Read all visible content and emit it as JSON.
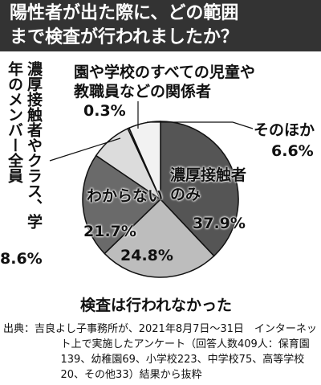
{
  "chart_data": {
    "type": "pie",
    "title": [
      "陽性者が出た際に、どの範囲",
      "まで検査が行われましたか？"
    ],
    "categories": [
      "濃厚接触者のみ",
      "検査は行われなかった",
      "わからない",
      "濃厚接触者やクラス、学年のメンバー全員",
      "園や学校のすべての児童や教職員などの関係者",
      "そのほか"
    ],
    "values": [
      37.9,
      24.8,
      21.7,
      8.6,
      0.3,
      6.6
    ],
    "value_labels": [
      "37.9%",
      "24.8%",
      "21.7%",
      "8.6%",
      "0.3%",
      "6.6%"
    ],
    "colors": [
      "#555555",
      "#bdbdbd",
      "#6a6a6a",
      "#dcdcdc",
      "#ffffff",
      "#f2f2f2"
    ],
    "source": "出典：吉良よし子事務所が、2021年8月7日〜31日　インターネット上で実施したアンケート（回答人数409人：保育園139、幼稚園69、小学校223、中学校75、高等学校20、その他33）結果から抜粋"
  }
}
